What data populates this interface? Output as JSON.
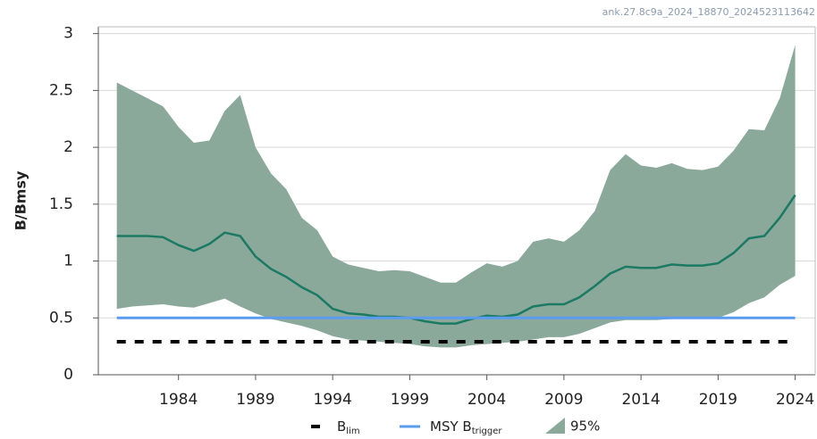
{
  "chart_data": {
    "type": "line",
    "watermark": "ank.27.8c9a_2024_18870_2024523113642",
    "ylabel": "B/Bmsy",
    "x": [
      1980,
      1981,
      1982,
      1983,
      1984,
      1985,
      1986,
      1987,
      1988,
      1989,
      1990,
      1991,
      1992,
      1993,
      1994,
      1995,
      1996,
      1997,
      1998,
      1999,
      2000,
      2001,
      2002,
      2003,
      2004,
      2005,
      2006,
      2007,
      2008,
      2009,
      2010,
      2011,
      2012,
      2013,
      2014,
      2015,
      2016,
      2017,
      2018,
      2019,
      2020,
      2021,
      2022,
      2023,
      2024
    ],
    "xlim": [
      1978.8,
      2025.3
    ],
    "xticks": [
      1984,
      1989,
      1994,
      1999,
      2004,
      2009,
      2014,
      2019,
      2024
    ],
    "ylim": [
      0,
      3.06
    ],
    "yticks": [
      0,
      0.5,
      1,
      1.5,
      2,
      2.5,
      3
    ],
    "grid": true,
    "series": [
      {
        "kind": "line",
        "color": "#1b7a63",
        "values": [
          1.22,
          1.22,
          1.22,
          1.21,
          1.14,
          1.09,
          1.15,
          1.25,
          1.22,
          1.04,
          0.93,
          0.86,
          0.77,
          0.7,
          0.58,
          0.54,
          0.53,
          0.51,
          0.51,
          0.5,
          0.47,
          0.45,
          0.45,
          0.49,
          0.52,
          0.51,
          0.53,
          0.6,
          0.62,
          0.62,
          0.68,
          0.78,
          0.89,
          0.95,
          0.94,
          0.94,
          0.97,
          0.96,
          0.96,
          0.98,
          1.07,
          1.2,
          1.22,
          1.38,
          1.58
        ]
      },
      {
        "kind": "band",
        "name": "95%",
        "color": "#8aa99b",
        "upper": [
          2.57,
          2.5,
          2.43,
          2.36,
          2.18,
          2.04,
          2.06,
          2.32,
          2.46,
          2.0,
          1.77,
          1.63,
          1.38,
          1.27,
          1.04,
          0.97,
          0.94,
          0.91,
          0.92,
          0.91,
          0.86,
          0.81,
          0.81,
          0.9,
          0.98,
          0.95,
          1.0,
          1.17,
          1.2,
          1.17,
          1.27,
          1.44,
          1.8,
          1.94,
          1.84,
          1.82,
          1.86,
          1.81,
          1.8,
          1.83,
          1.97,
          2.16,
          2.15,
          2.43,
          2.9
        ],
        "lower": [
          0.58,
          0.6,
          0.61,
          0.62,
          0.6,
          0.59,
          0.63,
          0.67,
          0.6,
          0.54,
          0.49,
          0.46,
          0.43,
          0.39,
          0.34,
          0.31,
          0.3,
          0.29,
          0.28,
          0.27,
          0.25,
          0.24,
          0.24,
          0.26,
          0.27,
          0.28,
          0.29,
          0.31,
          0.33,
          0.33,
          0.36,
          0.41,
          0.46,
          0.48,
          0.48,
          0.48,
          0.49,
          0.5,
          0.5,
          0.5,
          0.55,
          0.63,
          0.68,
          0.79,
          0.87
        ]
      }
    ],
    "reference_lines": [
      {
        "name": "B",
        "name_sub": "lim",
        "value": 0.29,
        "color": "#000000",
        "dashed": true
      },
      {
        "name": "MSY B",
        "name_sub": "trigger",
        "value": 0.5,
        "color": "#5b9cf0",
        "dashed": false
      }
    ]
  }
}
